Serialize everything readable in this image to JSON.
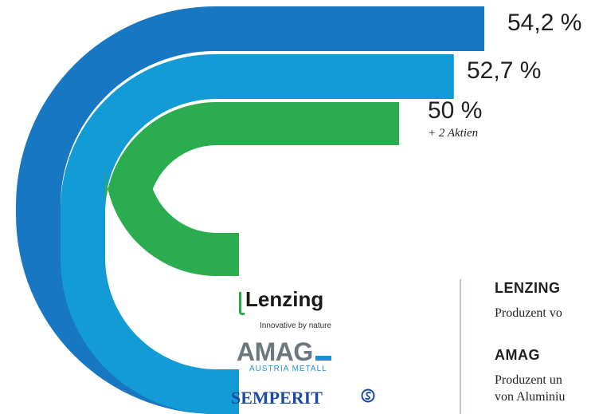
{
  "chart_data": {
    "type": "bar",
    "unit": "%",
    "categories": [
      "SEMPERIT",
      "AMAG",
      "LENZING"
    ],
    "values": [
      54.2,
      52.7,
      50
    ],
    "labels": [
      "54,2 %",
      "52,7 %",
      "50 %"
    ],
    "notes": [
      "",
      "",
      "+ 2 Aktien"
    ],
    "colors": [
      "#1877c2",
      "#139bd6",
      "#2bac4f"
    ]
  },
  "logos": {
    "lenzing": "Lenzing",
    "lenzing_tagline": "Innovative by nature",
    "amag": "AMAG",
    "amag_sub": "AUSTRIA METALL",
    "semperit": "SEMPERIT"
  },
  "companies": [
    {
      "name": "LENZING",
      "desc": [
        "Produzent vo"
      ]
    },
    {
      "name": "AMAG",
      "desc": [
        "Produzent un",
        "von Aluminiu"
      ]
    }
  ]
}
